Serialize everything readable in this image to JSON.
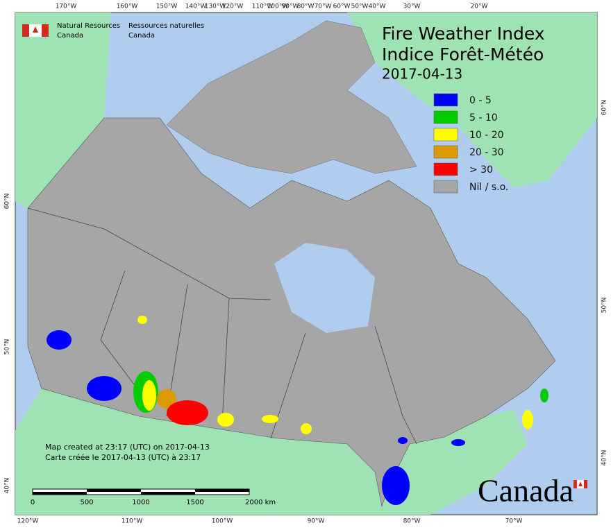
{
  "header": {
    "agency_en_1": "Natural Resources",
    "agency_en_2": "Canada",
    "agency_fr_1": "Ressources naturelles",
    "agency_fr_2": "Canada"
  },
  "title": {
    "line1": "Fire Weather Index",
    "line2": "Indice Forêt-Météo",
    "date": "2017-04-13"
  },
  "legend": [
    {
      "label": "0 - 5",
      "color": "#0000ff"
    },
    {
      "label": "5 - 10",
      "color": "#00cc00"
    },
    {
      "label": "10 - 20",
      "color": "#ffff00"
    },
    {
      "label": "20 - 30",
      "color": "#dd9900"
    },
    {
      "label": "> 30",
      "color": "#ff0000"
    },
    {
      "label": "Nil / s.o.",
      "color": "#a6a6a6"
    }
  ],
  "graticule": {
    "top": [
      "170°W",
      "160°W",
      "150°W",
      "140°W",
      "130°W",
      "120°W",
      "110°W",
      "100°W",
      "90°W",
      "80°W",
      "70°W",
      "60°W",
      "50°W",
      "40°W",
      "30°W",
      "20°W"
    ],
    "bottom": [
      "120°W",
      "110°W",
      "100°W",
      "90°W",
      "80°W",
      "70°W"
    ],
    "left": [
      "60°N",
      "50°N",
      "40°N"
    ],
    "right": [
      "60°N",
      "50°N",
      "40°N"
    ]
  },
  "notes": {
    "line1": "Map created at 23:17 (UTC) on 2017-04-13",
    "line2": "Carte créée le 2017-04-13 (UTC) à 23:17"
  },
  "scale_bar": [
    "0",
    "500",
    "1000",
    "1500",
    "2000 km"
  ],
  "wordmark": "Canada"
}
